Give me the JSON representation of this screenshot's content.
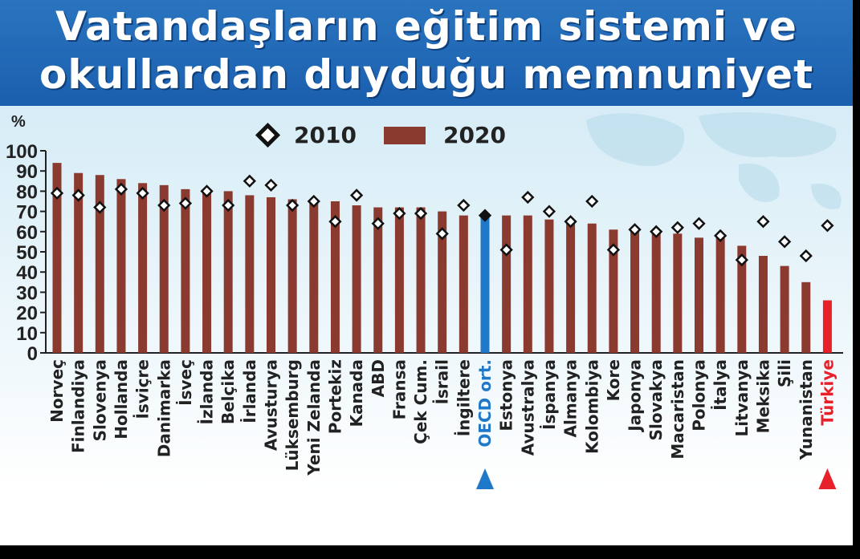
{
  "title": {
    "line1": "Vatandaşların eğitim sistemi ve",
    "line2": "okullardan duyduğu memnuniyet"
  },
  "chart_data": {
    "type": "bar",
    "ylabel": "%",
    "ylim": [
      0,
      100
    ],
    "yticks": [
      0,
      10,
      20,
      30,
      40,
      50,
      60,
      70,
      80,
      90,
      100
    ],
    "legend": {
      "placement": "top",
      "entries": [
        "2010",
        "2020"
      ]
    },
    "categories": [
      "Norveç",
      "Finlandiya",
      "Slovenya",
      "Hollanda",
      "İsviçre",
      "Danimarka",
      "İsveç",
      "İzlanda",
      "Belçika",
      "İrlanda",
      "Avusturya",
      "Lüksemburg",
      "Yeni Zelanda",
      "Portekiz",
      "Kanada",
      "ABD",
      "Fransa",
      "Çek Cum.",
      "İsrail",
      "İngiltere",
      "OECD ort.",
      "Estonya",
      "Avustralya",
      "İspanya",
      "Almanya",
      "Kolombiya",
      "Kore",
      "Japonya",
      "Slovakya",
      "Macaristan",
      "Polonya",
      "İtalya",
      "Litvanya",
      "Meksika",
      "Şili",
      "Yunanistan",
      "Türkiye"
    ],
    "series": [
      {
        "name": "2010",
        "marker": "diamond",
        "values": [
          79,
          78,
          72,
          81,
          79,
          73,
          74,
          80,
          73,
          85,
          83,
          73,
          75,
          65,
          78,
          64,
          69,
          69,
          59,
          73,
          68,
          51,
          77,
          70,
          65,
          75,
          51,
          61,
          60,
          62,
          64,
          58,
          46,
          65,
          55,
          48,
          63
        ]
      },
      {
        "name": "2020",
        "marker": "bar",
        "values": [
          94,
          89,
          88,
          86,
          84,
          83,
          81,
          80,
          80,
          78,
          77,
          76,
          75,
          75,
          73,
          72,
          72,
          72,
          70,
          68,
          67,
          68,
          68,
          66,
          65,
          64,
          61,
          60,
          60,
          59,
          57,
          57,
          53,
          48,
          43,
          35,
          26
        ]
      }
    ],
    "highlight": {
      "OECD ort.": "#1f78c8",
      "Türkiye": "#e8202a"
    }
  },
  "colors": {
    "bar": "#8b3a2f",
    "oecd": "#1f78c8",
    "turkey": "#e8202a",
    "title_bg": "#1a5fae"
  }
}
